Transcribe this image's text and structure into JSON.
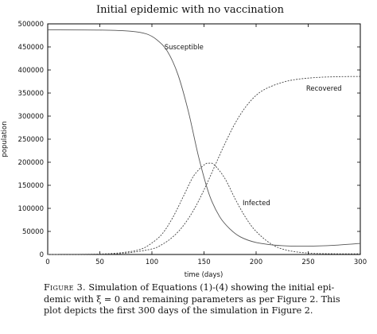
{
  "chart_data": {
    "type": "line",
    "title": "Initial epidemic with no vaccination",
    "xlabel": "time (days)",
    "ylabel": "population",
    "xlim": [
      0,
      300
    ],
    "ylim": [
      0,
      500000
    ],
    "x_ticks": [
      0,
      50,
      100,
      150,
      200,
      250,
      300
    ],
    "y_ticks": [
      0,
      50000,
      100000,
      150000,
      200000,
      250000,
      300000,
      350000,
      400000,
      450000,
      500000
    ],
    "grid": false,
    "series": [
      {
        "name": "Susceptible",
        "style": "solid",
        "x": [
          0,
          50,
          80,
          95,
          105,
          115,
          125,
          135,
          145,
          155,
          165,
          175,
          185,
          200,
          225,
          250,
          275,
          300
        ],
        "y": [
          487000,
          486500,
          484000,
          478000,
          465000,
          440000,
          390000,
          310000,
          210000,
          130000,
          82000,
          55000,
          38000,
          26000,
          19000,
          18000,
          20000,
          24000
        ]
      },
      {
        "name": "Infected",
        "style": "dashed",
        "x": [
          0,
          50,
          75,
          90,
          100,
          110,
          120,
          130,
          140,
          150,
          155,
          160,
          170,
          180,
          190,
          200,
          215,
          230,
          250,
          275,
          300
        ],
        "y": [
          100,
          1000,
          5000,
          12000,
          25000,
          45000,
          80000,
          125000,
          170000,
          194000,
          198000,
          194000,
          165000,
          120000,
          80000,
          50000,
          22000,
          9000,
          3000,
          1500,
          1500
        ]
      },
      {
        "name": "Recovered",
        "style": "dashed",
        "x": [
          0,
          50,
          75,
          100,
          110,
          120,
          130,
          140,
          150,
          160,
          170,
          180,
          190,
          200,
          210,
          225,
          240,
          260,
          280,
          300
        ],
        "y": [
          0,
          500,
          3000,
          12000,
          22000,
          38000,
          62000,
          96000,
          140000,
          190000,
          240000,
          285000,
          320000,
          345000,
          360000,
          373000,
          380000,
          384000,
          385500,
          386000
        ]
      }
    ],
    "annotations": [
      {
        "text": "Susceptible",
        "x": 112,
        "y": 445000
      },
      {
        "text": "Recovered",
        "x": 248,
        "y": 355000
      },
      {
        "text": "Infected",
        "x": 187,
        "y": 107000
      }
    ]
  },
  "caption": {
    "prefix": "Figure 3.",
    "lines": [
      "Simulation of Equations (1)-(4) showing the initial epi-",
      "demic with ξ = 0 and remaining parameters as per Figure 2. This",
      "plot depicts the first 300 days of the simulation in Figure 2."
    ]
  }
}
